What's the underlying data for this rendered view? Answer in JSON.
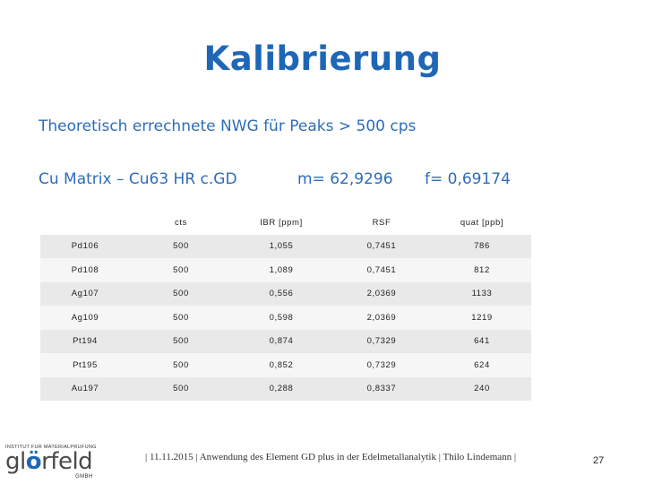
{
  "slide": {
    "title": "Kalibrierung",
    "subtitle": "Theoretisch errechnete NWG für Peaks > 500 cps",
    "matrix_label": "Cu Matrix – Cu63 HR c.GD",
    "mass": "m= 62,9296",
    "factor": "f= 0,69174"
  },
  "table": {
    "headers": [
      "",
      "cts",
      "IBR [ppm]",
      "RSF",
      "quat [ppb]"
    ],
    "rows": [
      [
        "Pd106",
        "500",
        "1,055",
        "0,7451",
        "786"
      ],
      [
        "Pd108",
        "500",
        "1,089",
        "0,7451",
        "812"
      ],
      [
        "Ag107",
        "500",
        "0,556",
        "2,0369",
        "1133"
      ],
      [
        "Ag109",
        "500",
        "0,598",
        "2,0369",
        "1219"
      ],
      [
        "Pt194",
        "500",
        "0,874",
        "0,7329",
        "641"
      ],
      [
        "Pt195",
        "500",
        "0,852",
        "0,7329",
        "624"
      ],
      [
        "Au197",
        "500",
        "0,288",
        "0,8337",
        "240"
      ]
    ]
  },
  "logo": {
    "top_text": "INSTITUT FÜR MATERIALPRÜFUNG",
    "main_prefix": "gl",
    "main_accent": "ö",
    "main_suffix": "rfeld",
    "sub_text": "GMBH"
  },
  "footer": {
    "text": "| 11.11.2015 | Anwendung des Element GD plus in der Edelmetallanalytik | Thilo Lindemann |",
    "page": "27"
  },
  "colors": {
    "accent": "#1f67b6",
    "row_dark": "#e9e9e9",
    "row_light": "#f6f6f6"
  }
}
